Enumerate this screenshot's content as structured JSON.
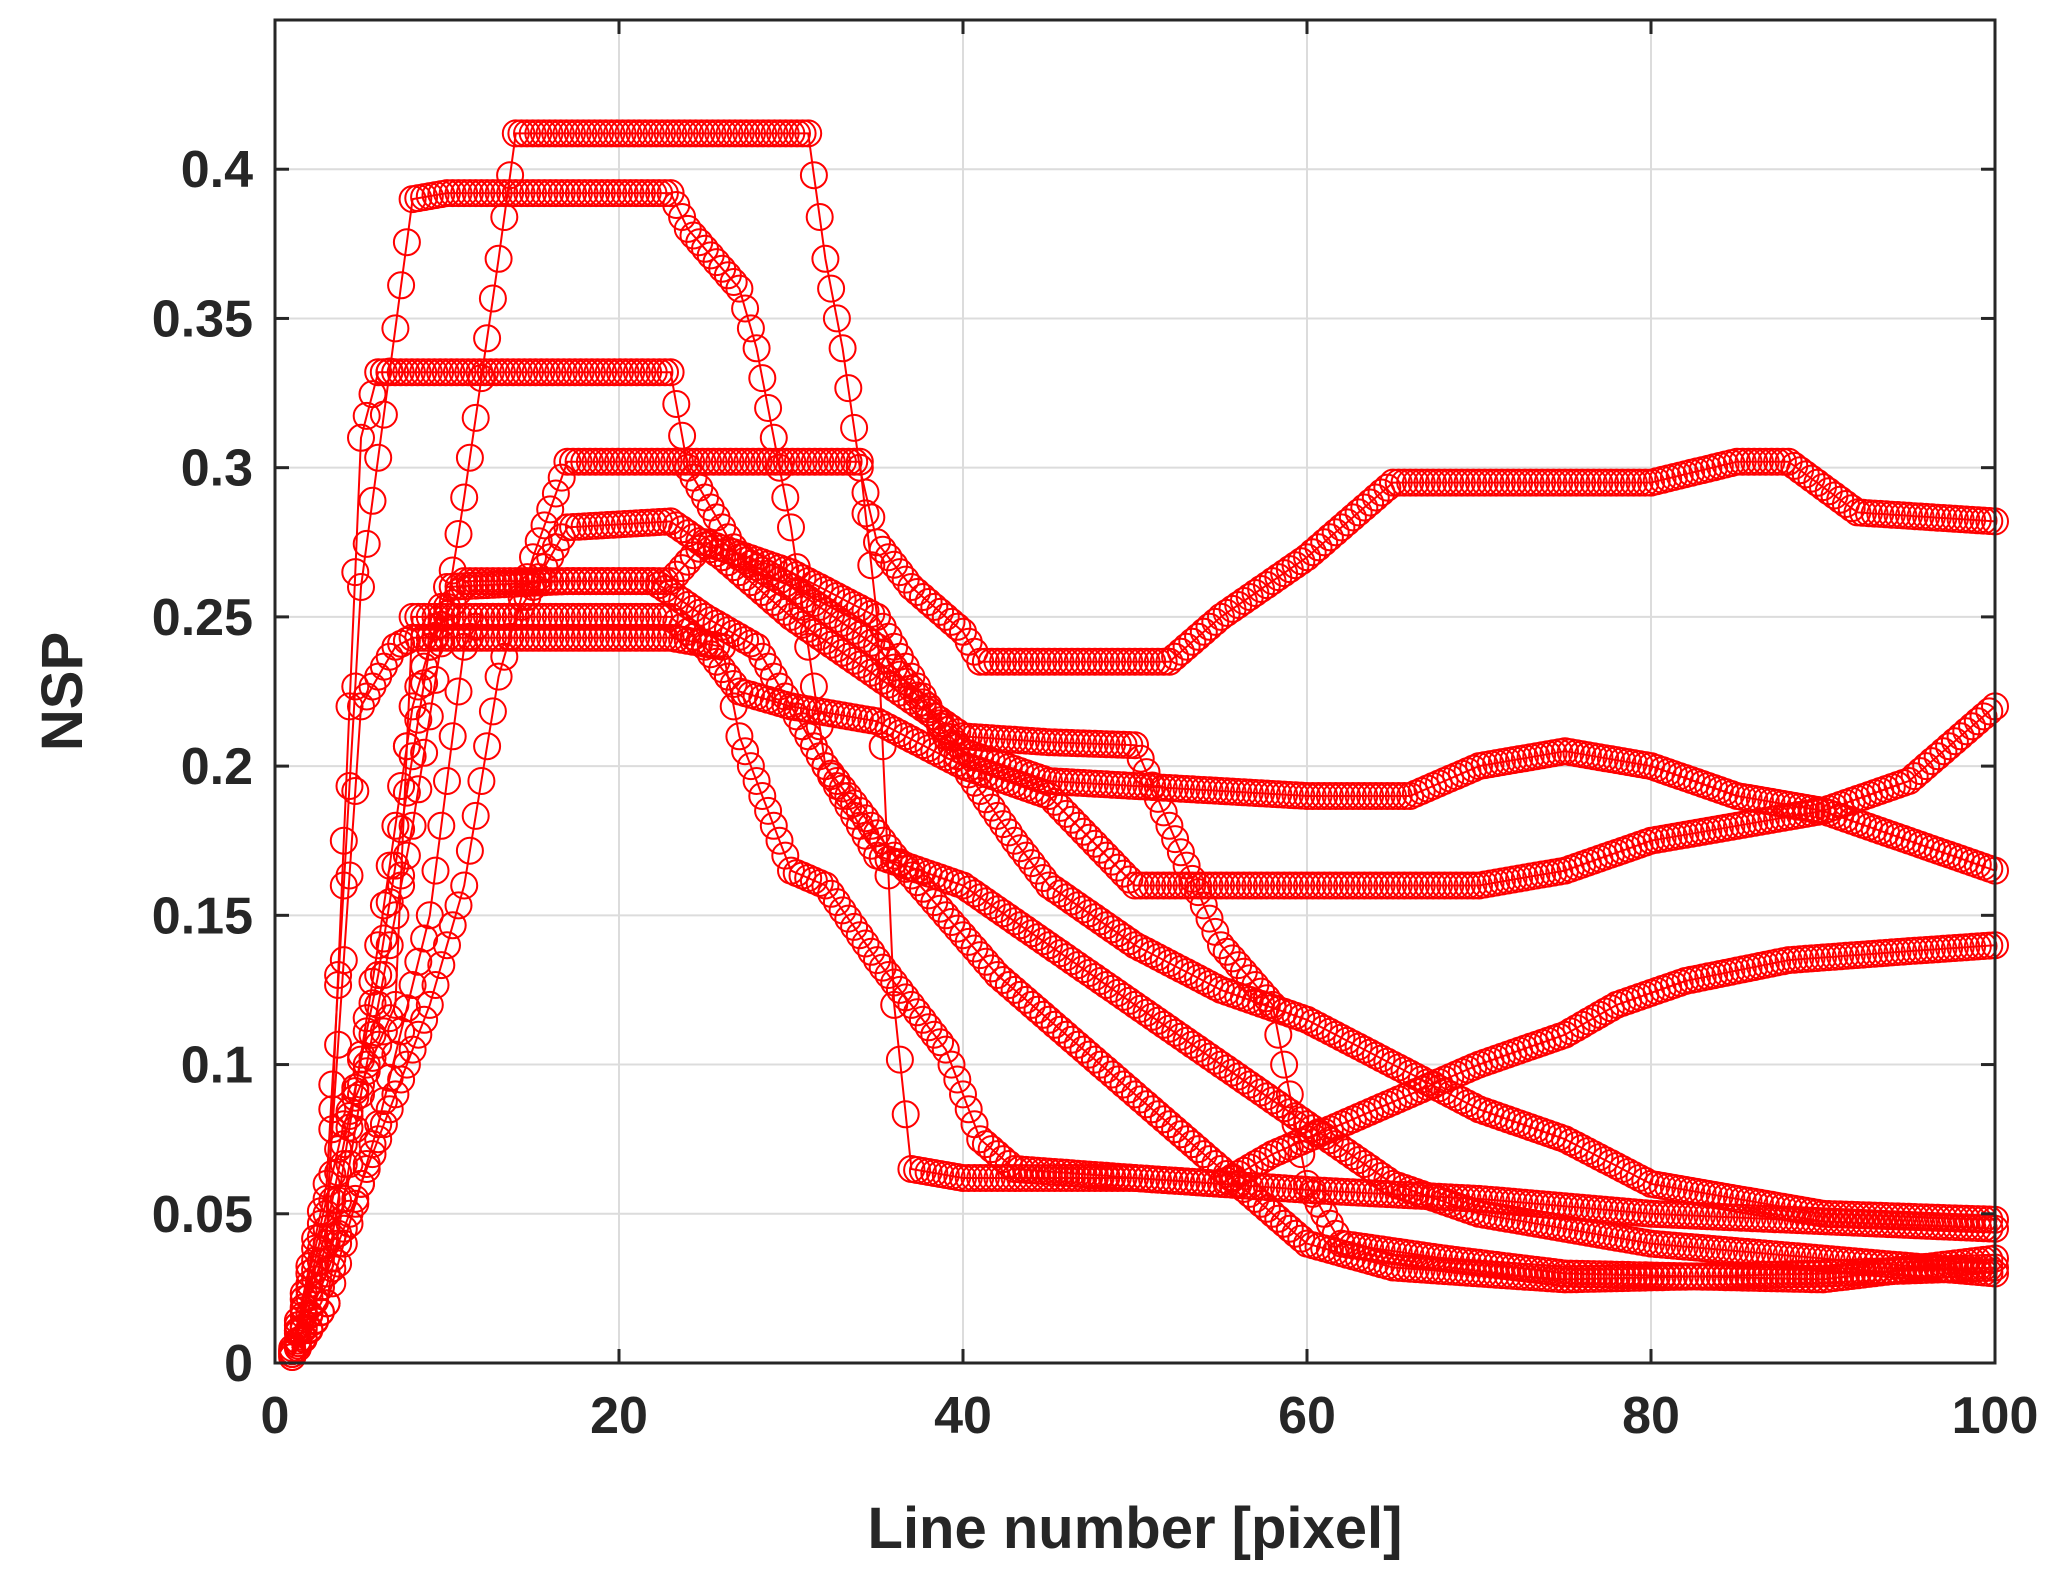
{
  "chart_data": {
    "type": "line",
    "title": "",
    "xlabel": "Line number [pixel]",
    "ylabel": "NSP",
    "xlim": [
      0,
      100
    ],
    "ylim": [
      0,
      0.45
    ],
    "xticks": [
      0,
      20,
      40,
      60,
      80,
      100
    ],
    "xtick_labels": [
      "0",
      "20",
      "40",
      "60",
      "80",
      "100"
    ],
    "yticks": [
      0,
      0.05,
      0.1,
      0.15,
      0.2,
      0.25,
      0.3,
      0.35,
      0.4
    ],
    "ytick_labels": [
      "0",
      "0.05",
      "0.1",
      "0.15",
      "0.2",
      "0.25",
      "0.3",
      "0.35",
      "0.4"
    ],
    "grid": true,
    "color": "#ff0000",
    "marker": "circle",
    "series": [
      {
        "points": [
          [
            1,
            0.005
          ],
          [
            3,
            0.06
          ],
          [
            5,
            0.26
          ],
          [
            8,
            0.39
          ],
          [
            10,
            0.392
          ],
          [
            23,
            0.392
          ],
          [
            24,
            0.38
          ],
          [
            27,
            0.36
          ],
          [
            28,
            0.34
          ],
          [
            30,
            0.28
          ],
          [
            31,
            0.24
          ],
          [
            32,
            0.2
          ],
          [
            35,
            0.17
          ],
          [
            40,
            0.16
          ],
          [
            45,
            0.14
          ],
          [
            50,
            0.12
          ],
          [
            55,
            0.1
          ],
          [
            60,
            0.08
          ],
          [
            65,
            0.06
          ],
          [
            70,
            0.05
          ],
          [
            80,
            0.04
          ],
          [
            100,
            0.03
          ]
        ]
      },
      {
        "points": [
          [
            1,
            0.003
          ],
          [
            3,
            0.02
          ],
          [
            5,
            0.09
          ],
          [
            8,
            0.18
          ],
          [
            11,
            0.29
          ],
          [
            13,
            0.37
          ],
          [
            14,
            0.412
          ],
          [
            31,
            0.412
          ],
          [
            32,
            0.37
          ],
          [
            33,
            0.34
          ],
          [
            34,
            0.3
          ],
          [
            35,
            0.275
          ],
          [
            37,
            0.26
          ],
          [
            40,
            0.245
          ],
          [
            41,
            0.235
          ],
          [
            52,
            0.235
          ],
          [
            55,
            0.25
          ],
          [
            60,
            0.27
          ],
          [
            65,
            0.295
          ],
          [
            80,
            0.295
          ],
          [
            85,
            0.302
          ],
          [
            88,
            0.302
          ],
          [
            92,
            0.285
          ],
          [
            100,
            0.282
          ]
        ]
      },
      {
        "points": [
          [
            1,
            0.004
          ],
          [
            3,
            0.04
          ],
          [
            5,
            0.31
          ],
          [
            6,
            0.332
          ],
          [
            23,
            0.332
          ],
          [
            24,
            0.3
          ],
          [
            27,
            0.27
          ],
          [
            30,
            0.26
          ],
          [
            35,
            0.24
          ],
          [
            40,
            0.205
          ],
          [
            45,
            0.195
          ],
          [
            60,
            0.19
          ],
          [
            66,
            0.19
          ],
          [
            70,
            0.2
          ],
          [
            75,
            0.205
          ],
          [
            80,
            0.2
          ],
          [
            85,
            0.19
          ],
          [
            90,
            0.185
          ],
          [
            100,
            0.165
          ]
        ]
      },
      {
        "points": [
          [
            1,
            0.002
          ],
          [
            3,
            0.03
          ],
          [
            6,
            0.14
          ],
          [
            8,
            0.22
          ],
          [
            10,
            0.26
          ],
          [
            17,
            0.262
          ],
          [
            23,
            0.262
          ],
          [
            25,
            0.275
          ],
          [
            30,
            0.265
          ],
          [
            35,
            0.25
          ],
          [
            38,
            0.22
          ],
          [
            40,
            0.2
          ],
          [
            45,
            0.19
          ],
          [
            50,
            0.16
          ],
          [
            60,
            0.16
          ],
          [
            70,
            0.16
          ],
          [
            75,
            0.165
          ],
          [
            80,
            0.175
          ],
          [
            90,
            0.185
          ],
          [
            95,
            0.195
          ],
          [
            100,
            0.22
          ]
        ]
      },
      {
        "points": [
          [
            1,
            0.003
          ],
          [
            3,
            0.05
          ],
          [
            5,
            0.22
          ],
          [
            7,
            0.24
          ],
          [
            8,
            0.243
          ],
          [
            23,
            0.243
          ],
          [
            26,
            0.24
          ],
          [
            27,
            0.21
          ],
          [
            29,
            0.18
          ],
          [
            30,
            0.165
          ],
          [
            32,
            0.16
          ],
          [
            35,
            0.135
          ],
          [
            37,
            0.12
          ],
          [
            39,
            0.105
          ],
          [
            41,
            0.075
          ],
          [
            43,
            0.065
          ],
          [
            50,
            0.062
          ],
          [
            55,
            0.06
          ],
          [
            60,
            0.058
          ],
          [
            70,
            0.055
          ],
          [
            80,
            0.05
          ],
          [
            100,
            0.045
          ]
        ]
      },
      {
        "points": [
          [
            1,
            0.002
          ],
          [
            3,
            0.02
          ],
          [
            6,
            0.08
          ],
          [
            9,
            0.15
          ],
          [
            11,
            0.24
          ],
          [
            12,
            0.25
          ],
          [
            23,
            0.25
          ],
          [
            25,
            0.24
          ],
          [
            27,
            0.225
          ],
          [
            30,
            0.22
          ],
          [
            35,
            0.215
          ],
          [
            40,
            0.2
          ],
          [
            43,
            0.175
          ],
          [
            45,
            0.16
          ],
          [
            50,
            0.14
          ],
          [
            55,
            0.125
          ],
          [
            60,
            0.115
          ],
          [
            65,
            0.1
          ],
          [
            70,
            0.085
          ],
          [
            75,
            0.075
          ],
          [
            80,
            0.06
          ],
          [
            90,
            0.05
          ],
          [
            100,
            0.048
          ]
        ]
      },
      {
        "points": [
          [
            1,
            0.004
          ],
          [
            2,
            0.03
          ],
          [
            4,
            0.08
          ],
          [
            7,
            0.12
          ],
          [
            8,
            0.25
          ],
          [
            14,
            0.25
          ],
          [
            17,
            0.28
          ],
          [
            23,
            0.282
          ],
          [
            26,
            0.27
          ],
          [
            30,
            0.25
          ],
          [
            35,
            0.23
          ],
          [
            40,
            0.21
          ],
          [
            45,
            0.208
          ],
          [
            50,
            0.207
          ],
          [
            52,
            0.18
          ],
          [
            55,
            0.14
          ],
          [
            58,
            0.12
          ],
          [
            60,
            0.06
          ],
          [
            62,
            0.04
          ],
          [
            68,
            0.035
          ],
          [
            75,
            0.03
          ],
          [
            90,
            0.028
          ],
          [
            100,
            0.035
          ]
        ]
      },
      {
        "points": [
          [
            1,
            0.003
          ],
          [
            3,
            0.03
          ],
          [
            5,
            0.06
          ],
          [
            7,
            0.09
          ],
          [
            9,
            0.12
          ],
          [
            11,
            0.16
          ],
          [
            13,
            0.23
          ],
          [
            15,
            0.27
          ],
          [
            17,
            0.302
          ],
          [
            34,
            0.302
          ],
          [
            35,
            0.25
          ],
          [
            36,
            0.12
          ],
          [
            37,
            0.065
          ],
          [
            40,
            0.062
          ],
          [
            50,
            0.062
          ],
          [
            55,
            0.06
          ],
          [
            58,
            0.07
          ],
          [
            62,
            0.08
          ],
          [
            66,
            0.09
          ],
          [
            70,
            0.1
          ],
          [
            75,
            0.11
          ],
          [
            78,
            0.12
          ],
          [
            82,
            0.128
          ],
          [
            88,
            0.135
          ],
          [
            95,
            0.138
          ],
          [
            100,
            0.14
          ]
        ]
      },
      {
        "points": [
          [
            1,
            0.004
          ],
          [
            3,
            0.045
          ],
          [
            6,
            0.13
          ],
          [
            9,
            0.24
          ],
          [
            11,
            0.262
          ],
          [
            22,
            0.262
          ],
          [
            25,
            0.25
          ],
          [
            28,
            0.24
          ],
          [
            32,
            0.2
          ],
          [
            36,
            0.17
          ],
          [
            42,
            0.13
          ],
          [
            48,
            0.1
          ],
          [
            52,
            0.08
          ],
          [
            55,
            0.065
          ],
          [
            60,
            0.04
          ],
          [
            65,
            0.032
          ],
          [
            75,
            0.028
          ],
          [
            90,
            0.03
          ],
          [
            100,
            0.032
          ]
        ]
      }
    ]
  }
}
